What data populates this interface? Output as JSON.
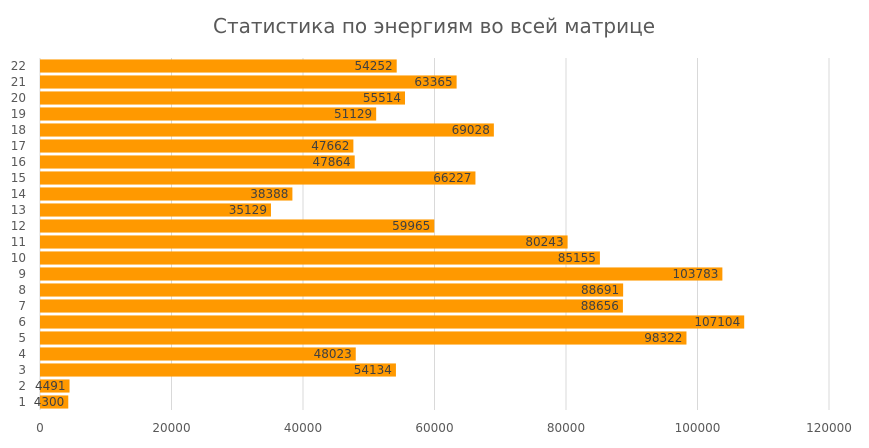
{
  "chart_data": {
    "type": "bar",
    "orientation": "horizontal",
    "title": "Статистика по энергиям во всей матрице",
    "xlabel": "",
    "ylabel": "",
    "xlim": [
      0,
      120000
    ],
    "xticks": [
      0,
      20000,
      40000,
      60000,
      80000,
      100000,
      120000
    ],
    "xtick_labels": [
      "0",
      "20000",
      "40000",
      "60000",
      "80000",
      "100000",
      "120000"
    ],
    "grid": true,
    "legend": "none",
    "bar_color": "#ff9900",
    "categories": [
      "1",
      "2",
      "3",
      "4",
      "5",
      "6",
      "7",
      "8",
      "9",
      "10",
      "11",
      "12",
      "13",
      "14",
      "15",
      "16",
      "17",
      "18",
      "19",
      "20",
      "21",
      "22"
    ],
    "values": [
      4300,
      4491,
      54134,
      48023,
      98322,
      107104,
      88656,
      88691,
      103783,
      85155,
      80243,
      59965,
      35129,
      38388,
      66227,
      47864,
      47662,
      69028,
      51129,
      55514,
      63365,
      54252
    ],
    "data_labels": [
      "4300",
      "4491",
      "54134",
      "48023",
      "98322",
      "107104",
      "88656",
      "88691",
      "103783",
      "85155",
      "80243",
      "59965",
      "35129",
      "38388",
      "66227",
      "47864",
      "47662",
      "69028",
      "51129",
      "55514",
      "63365",
      "54252"
    ]
  }
}
